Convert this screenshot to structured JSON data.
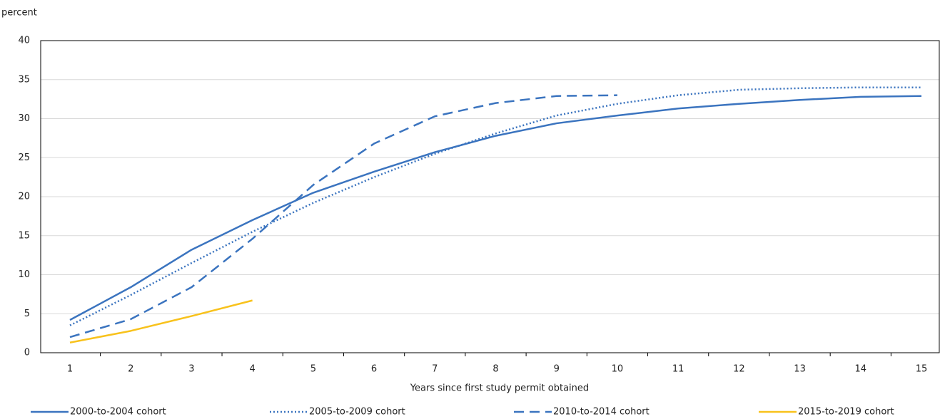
{
  "chart_data": {
    "type": "line",
    "y_label": "percent",
    "x_label": "Years since first study permit obtained",
    "categories": [
      "1",
      "2",
      "3",
      "4",
      "5",
      "6",
      "7",
      "8",
      "9",
      "10",
      "11",
      "12",
      "13",
      "14",
      "15"
    ],
    "series": [
      {
        "name": "2000-to-2004 cohort",
        "color": "#3b74bf",
        "dash": "solid",
        "values": [
          4.2,
          8.4,
          13.2,
          17.0,
          20.5,
          23.2,
          25.7,
          27.8,
          29.4,
          30.4,
          31.3,
          31.9,
          32.4,
          32.8,
          32.9
        ]
      },
      {
        "name": "2005-to-2009 cohort",
        "color": "#3b74bf",
        "dash": "dotted",
        "values": [
          3.5,
          7.4,
          11.5,
          15.5,
          19.2,
          22.5,
          25.5,
          28.1,
          30.4,
          31.9,
          33.0,
          33.7,
          33.9,
          34.0,
          34.0
        ]
      },
      {
        "name": "2010-to-2014 cohort",
        "color": "#3b74bf",
        "dash": "dashed",
        "values": [
          2.0,
          4.3,
          8.4,
          14.6,
          21.5,
          26.8,
          30.3,
          32.0,
          32.9,
          33.0,
          null,
          null,
          null,
          null,
          null
        ]
      },
      {
        "name": "2015-to-2019 cohort",
        "color": "#f8c21c",
        "dash": "solid",
        "values": [
          1.3,
          2.8,
          4.7,
          6.7,
          null,
          null,
          null,
          null,
          null,
          null,
          null,
          null,
          null,
          null,
          null
        ]
      }
    ],
    "ylim": [
      0,
      40
    ],
    "yticks": [
      0,
      5,
      10,
      15,
      20,
      25,
      30,
      35,
      40
    ],
    "grid": true,
    "legend": "bottom"
  }
}
